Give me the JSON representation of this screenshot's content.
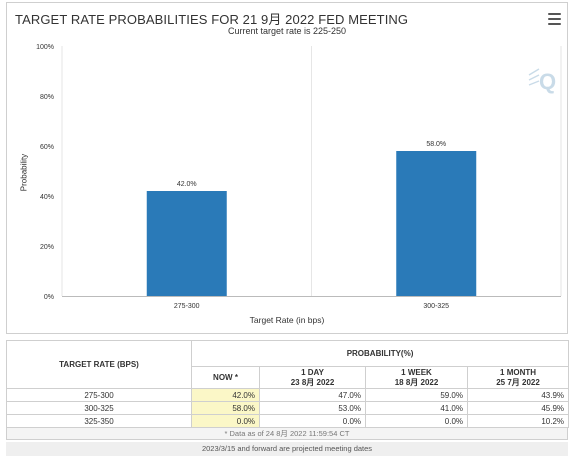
{
  "chart": {
    "title": "TARGET RATE PROBABILITIES FOR 21 9月 2022 FED MEETING",
    "subtitle": "Current target rate is 225-250",
    "menu_icon": "hamburger-menu-icon",
    "watermark_icon": "q-logo-icon",
    "bar_color": "#2a7ab8"
  },
  "chart_data": {
    "type": "bar",
    "title": "TARGET RATE PROBABILITIES FOR 21 9月 2022 FED MEETING",
    "subtitle": "Current target rate is 225-250",
    "xlabel": "Target Rate (in bps)",
    "ylabel": "Probability",
    "categories": [
      "275-300",
      "300-325"
    ],
    "values": [
      42.0,
      58.0
    ],
    "data_labels": [
      "42.0%",
      "58.0%"
    ],
    "ylim": [
      0,
      100
    ],
    "yticks": [
      "0%",
      "20%",
      "40%",
      "60%",
      "80%",
      "100%"
    ],
    "grid": "vertical category lines",
    "legend": "none"
  },
  "table": {
    "header_rate": "TARGET RATE (BPS)",
    "header_prob": "PROBABILITY(%)",
    "columns": [
      {
        "line1": "NOW *",
        "line2": ""
      },
      {
        "line1": "1 DAY",
        "line2": "23 8月 2022"
      },
      {
        "line1": "1 WEEK",
        "line2": "18 8月 2022"
      },
      {
        "line1": "1 MONTH",
        "line2": "25 7月 2022"
      }
    ],
    "rows": [
      {
        "rate": "275-300",
        "values": [
          "42.0%",
          "47.0%",
          "59.0%",
          "43.9%"
        ]
      },
      {
        "rate": "300-325",
        "values": [
          "58.0%",
          "53.0%",
          "41.0%",
          "45.9%"
        ]
      },
      {
        "rate": "325-350",
        "values": [
          "0.0%",
          "0.0%",
          "0.0%",
          "10.2%"
        ]
      }
    ],
    "footnote": "* Data as of 24 8月 2022 11:59:54 CT",
    "projected_note": "2023/3/15 and forward are projected meeting dates"
  }
}
